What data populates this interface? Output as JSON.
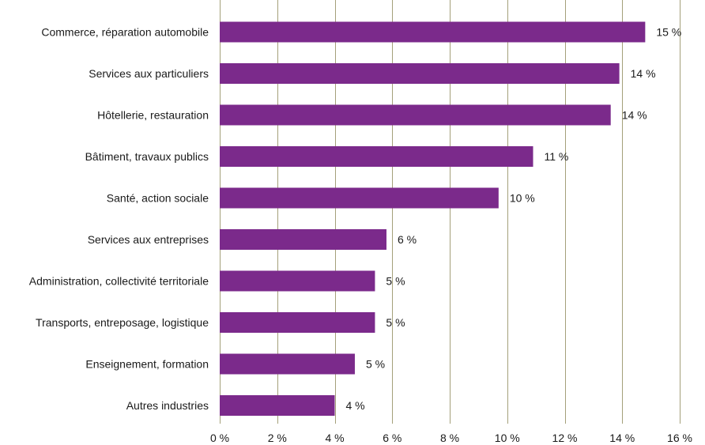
{
  "chart_data": {
    "type": "bar",
    "orientation": "horizontal",
    "categories": [
      "Commerce, réparation automobile",
      "Services aux particuliers",
      "Hôtellerie, restauration",
      "Bâtiment, travaux publics",
      "Santé, action sociale",
      "Services aux entreprises",
      "Administration, collectivité territoriale",
      "Transports, entreposage, logistique",
      "Enseignement, formation",
      "Autres industries"
    ],
    "values": [
      14.8,
      13.9,
      13.6,
      10.9,
      9.7,
      5.8,
      5.4,
      5.4,
      4.7,
      4.0
    ],
    "value_labels": [
      "15 %",
      "14 %",
      "14 %",
      "11 %",
      "10 %",
      "6 %",
      "5 %",
      "5 %",
      "5 %",
      "4 %"
    ],
    "xlim": [
      0,
      16
    ],
    "xticks": [
      0,
      2,
      4,
      6,
      8,
      10,
      12,
      14,
      16
    ],
    "xtick_labels": [
      "0 %",
      "2 %",
      "4 %",
      "6 %",
      "8 %",
      "10 %",
      "12 %",
      "14 %",
      "16 %"
    ],
    "grid": true,
    "bar_color": "#7b2a8b",
    "grid_color": "#a4a07a"
  }
}
